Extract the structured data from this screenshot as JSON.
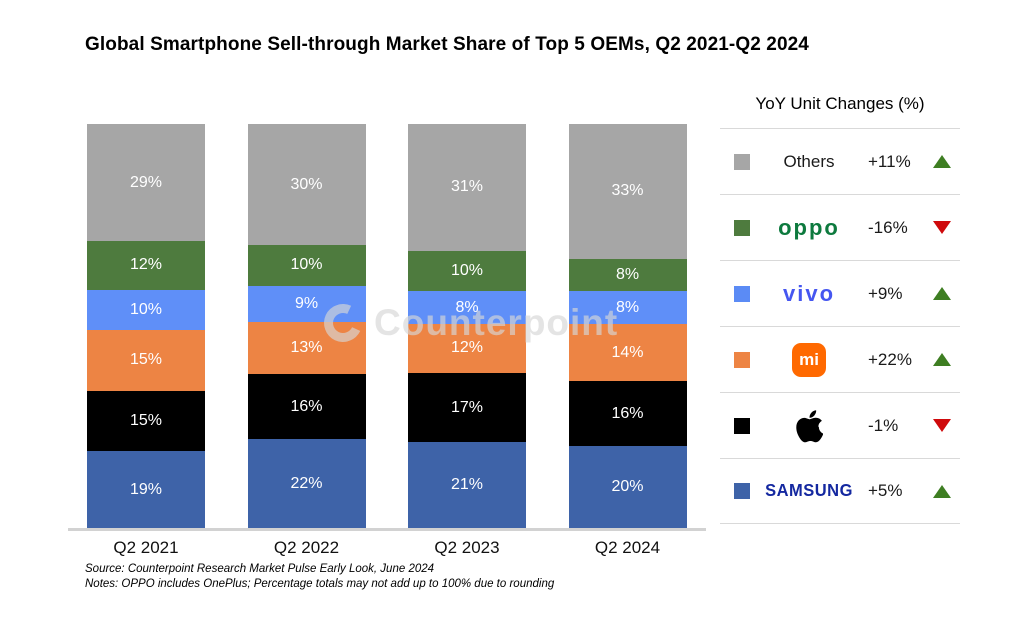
{
  "title": "Global Smartphone Sell-through Market Share of Top 5 OEMs, Q2 2021-Q2 2024",
  "watermark": "Counterpoint",
  "chart_data": {
    "type": "bar",
    "stacked": true,
    "categories": [
      "Q2 2021",
      "Q2 2022",
      "Q2 2023",
      "Q2 2024"
    ],
    "series": [
      {
        "name": "Samsung",
        "color": "#3e63a8",
        "values": [
          19,
          22,
          21,
          20
        ]
      },
      {
        "name": "Apple",
        "color": "#000000",
        "values": [
          15,
          16,
          17,
          16
        ]
      },
      {
        "name": "Xiaomi",
        "color": "#ed8444",
        "values": [
          15,
          13,
          12,
          14
        ]
      },
      {
        "name": "vivo",
        "color": "#5f8ff8",
        "values": [
          10,
          9,
          8,
          8
        ]
      },
      {
        "name": "OPPO",
        "color": "#4e7b3e",
        "values": [
          12,
          10,
          10,
          8
        ]
      },
      {
        "name": "Others",
        "color": "#a6a6a6",
        "values": [
          29,
          30,
          31,
          33
        ]
      }
    ],
    "value_suffix": "%",
    "ylim": [
      0,
      100
    ],
    "grid": false,
    "legend_position": "right"
  },
  "legend": {
    "header": "YoY Unit Changes (%)",
    "rows": [
      {
        "brand": "Others",
        "swatch": "#a6a6a6",
        "change": "+11%",
        "direction": "up"
      },
      {
        "brand": "OPPO",
        "swatch": "#4e7b3e",
        "change": "-16%",
        "direction": "down"
      },
      {
        "brand": "vivo",
        "swatch": "#5b8bf5",
        "change": "+9%",
        "direction": "up"
      },
      {
        "brand": "Xiaomi",
        "swatch": "#ed8444",
        "change": "+22%",
        "direction": "up"
      },
      {
        "brand": "Apple",
        "swatch": "#000000",
        "change": "-1%",
        "direction": "down"
      },
      {
        "brand": "Samsung",
        "swatch": "#3e63a8",
        "change": "+5%",
        "direction": "up"
      }
    ]
  },
  "logo_text": {
    "oppo": "oppo",
    "vivo": "vivo",
    "mi": "mi",
    "samsung": "SAMSUNG"
  },
  "brand_colors": {
    "oppo": "#0d7a3e",
    "vivo": "#4556f0",
    "samsung": "#1428a0",
    "mi_badge": "#ff6900",
    "up": "#3e7e22",
    "down": "#cf0a0c"
  },
  "footnotes": {
    "source": "Source: Counterpoint Research Market Pulse Early Look, June 2024",
    "notes": "Notes: OPPO includes OnePlus; Percentage totals may not add up to 100% due to rounding"
  }
}
